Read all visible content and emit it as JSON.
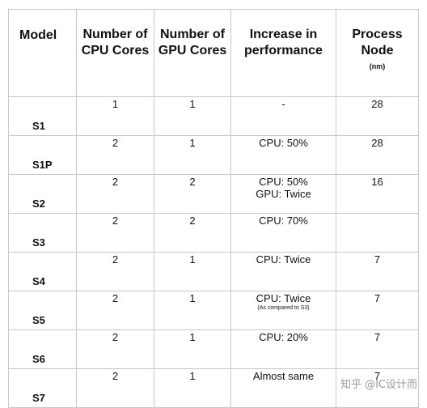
{
  "table": {
    "headers": {
      "model": "Model",
      "cpu": "Number of CPU Cores",
      "gpu": "Number of GPU Cores",
      "perf": "Increase in performance",
      "process": "Process Node",
      "process_unit": "(nm)"
    },
    "rows": [
      {
        "model": "S1",
        "cpu": "1",
        "gpu": "1",
        "perf": "-",
        "perf2": "",
        "note": "",
        "node": "28"
      },
      {
        "model": "S1P",
        "cpu": "2",
        "gpu": "1",
        "perf": "CPU: 50%",
        "perf2": "",
        "note": "",
        "node": "28"
      },
      {
        "model": "S2",
        "cpu": "2",
        "gpu": "2",
        "perf": "CPU: 50%",
        "perf2": "GPU: Twice",
        "note": "",
        "node": "16"
      },
      {
        "model": "S3",
        "cpu": "2",
        "gpu": "2",
        "perf": "CPU: 70%",
        "perf2": "",
        "note": "",
        "node": ""
      },
      {
        "model": "S4",
        "cpu": "2",
        "gpu": "1",
        "perf": "CPU: Twice",
        "perf2": "",
        "note": "",
        "node": "7"
      },
      {
        "model": "S5",
        "cpu": "2",
        "gpu": "1",
        "perf": "CPU: Twice",
        "perf2": "",
        "note": "(As compared to S3)",
        "node": "7"
      },
      {
        "model": "S6",
        "cpu": "2",
        "gpu": "1",
        "perf": "CPU: 20%",
        "perf2": "",
        "note": "",
        "node": "7"
      },
      {
        "model": "S7",
        "cpu": "2",
        "gpu": "1",
        "perf": "Almost same",
        "perf2": "",
        "note": "",
        "node": "7"
      }
    ]
  },
  "watermark": "知乎 @IC设计而"
}
